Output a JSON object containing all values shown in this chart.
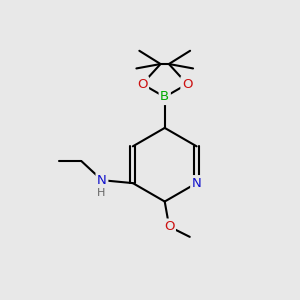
{
  "bg_color": "#e8e8e8",
  "bond_color": "#000000",
  "bond_width": 1.5,
  "atom_colors": {
    "N": "#1010cc",
    "O": "#cc1010",
    "B": "#00aa00",
    "H": "#666666"
  },
  "font_size": 9.5,
  "figsize": [
    3.0,
    3.0
  ],
  "dpi": 100
}
